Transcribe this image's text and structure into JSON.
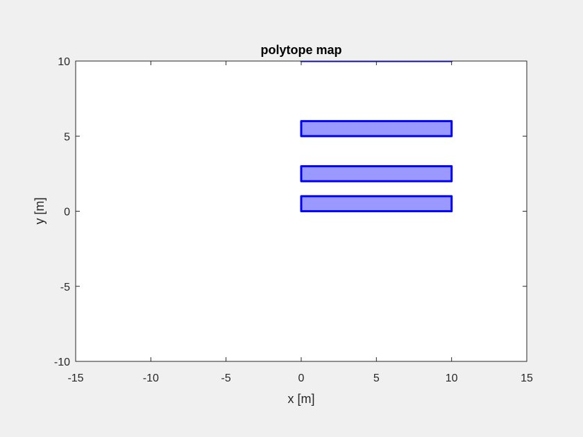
{
  "chart_data": {
    "type": "polygon-map",
    "title": "polytope map",
    "xlabel": "x [m]",
    "ylabel": "y [m]",
    "xlim": [
      -15,
      15
    ],
    "ylim": [
      -10,
      10
    ],
    "xticks": [
      -15,
      -10,
      -5,
      0,
      5,
      10,
      15
    ],
    "yticks": [
      -10,
      -5,
      0,
      5,
      10
    ],
    "grid": false,
    "colors": {
      "edge": "#0000ff",
      "fill": "#9999ff",
      "background": "#ffffff",
      "figure": "#f0f0f0"
    },
    "polytopes": [
      {
        "vertices": [
          [
            0,
            0
          ],
          [
            10,
            0
          ],
          [
            10,
            1
          ],
          [
            0,
            1
          ]
        ]
      },
      {
        "vertices": [
          [
            0,
            2
          ],
          [
            10,
            2
          ],
          [
            10,
            3
          ],
          [
            0,
            3
          ]
        ]
      },
      {
        "vertices": [
          [
            0,
            5
          ],
          [
            10,
            5
          ],
          [
            10,
            6
          ],
          [
            0,
            6
          ]
        ]
      },
      {
        "vertices": [
          [
            0,
            10
          ],
          [
            10,
            10
          ],
          [
            10,
            11
          ],
          [
            0,
            11
          ]
        ]
      }
    ]
  }
}
